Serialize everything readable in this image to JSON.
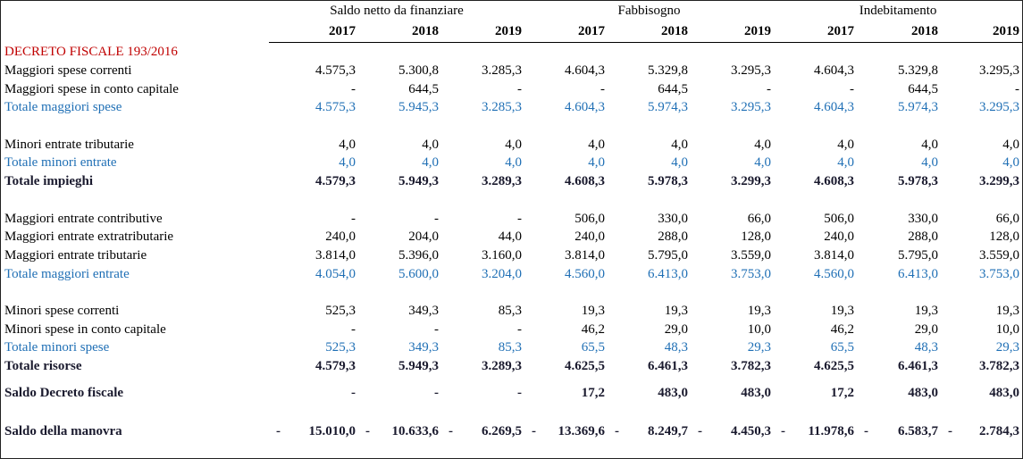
{
  "groups": [
    "Saldo netto da finanziare",
    "Fabbisogno",
    "Indebitamento"
  ],
  "years": [
    "2017",
    "2018",
    "2019",
    "2017",
    "2018",
    "2019",
    "2017",
    "2018",
    "2019"
  ],
  "section_title": "DECRETO FISCALE 193/2016",
  "rows": [
    {
      "label": "Maggiori spese correnti",
      "v": [
        "4.575,3",
        "5.300,8",
        "3.285,3",
        "4.604,3",
        "5.329,8",
        "3.295,3",
        "4.604,3",
        "5.329,8",
        "3.295,3"
      ]
    },
    {
      "label": "Maggiori spese in conto capitale",
      "v": [
        "-",
        "644,5",
        "-",
        "-",
        "644,5",
        "-",
        "-",
        "644,5",
        "-"
      ]
    },
    {
      "label": "Totale maggiori spese",
      "v": [
        "4.575,3",
        "5.945,3",
        "3.285,3",
        "4.604,3",
        "5.974,3",
        "3.295,3",
        "4.604,3",
        "5.974,3",
        "3.295,3"
      ]
    },
    {
      "label": "Minori entrate tributarie",
      "v": [
        "4,0",
        "4,0",
        "4,0",
        "4,0",
        "4,0",
        "4,0",
        "4,0",
        "4,0",
        "4,0"
      ]
    },
    {
      "label": "Totale minori entrate",
      "v": [
        "4,0",
        "4,0",
        "4,0",
        "4,0",
        "4,0",
        "4,0",
        "4,0",
        "4,0",
        "4,0"
      ]
    },
    {
      "label": "Totale impieghi",
      "v": [
        "4.579,3",
        "5.949,3",
        "3.289,3",
        "4.608,3",
        "5.978,3",
        "3.299,3",
        "4.608,3",
        "5.978,3",
        "3.299,3"
      ]
    },
    {
      "label": "Maggiori entrate contributive",
      "v": [
        "-",
        "-",
        "-",
        "506,0",
        "330,0",
        "66,0",
        "506,0",
        "330,0",
        "66,0"
      ]
    },
    {
      "label": "Maggiori entrate extratributarie",
      "v": [
        "240,0",
        "204,0",
        "44,0",
        "240,0",
        "288,0",
        "128,0",
        "240,0",
        "288,0",
        "128,0"
      ]
    },
    {
      "label": "Maggiori entrate tributarie",
      "v": [
        "3.814,0",
        "5.396,0",
        "3.160,0",
        "3.814,0",
        "5.795,0",
        "3.559,0",
        "3.814,0",
        "5.795,0",
        "3.559,0"
      ]
    },
    {
      "label": "Totale maggiori entrate",
      "v": [
        "4.054,0",
        "5.600,0",
        "3.204,0",
        "4.560,0",
        "6.413,0",
        "3.753,0",
        "4.560,0",
        "6.413,0",
        "3.753,0"
      ]
    },
    {
      "label": "Minori spese correnti",
      "v": [
        "525,3",
        "349,3",
        "85,3",
        "19,3",
        "19,3",
        "19,3",
        "19,3",
        "19,3",
        "19,3"
      ]
    },
    {
      "label": "Minori spese in conto capitale",
      "v": [
        "-",
        "-",
        "-",
        "46,2",
        "29,0",
        "10,0",
        "46,2",
        "29,0",
        "10,0"
      ]
    },
    {
      "label": "Totale minori spese",
      "v": [
        "525,3",
        "349,3",
        "85,3",
        "65,5",
        "48,3",
        "29,3",
        "65,5",
        "48,3",
        "29,3"
      ]
    },
    {
      "label": "Totale risorse",
      "v": [
        "4.579,3",
        "5.949,3",
        "3.289,3",
        "4.625,5",
        "6.461,3",
        "3.782,3",
        "4.625,5",
        "6.461,3",
        "3.782,3"
      ]
    },
    {
      "label": "Saldo Decreto fiscale",
      "v": [
        "-",
        "-",
        "-",
        "17,2",
        "483,0",
        "483,0",
        "17,2",
        "483,0",
        "483,0"
      ]
    },
    {
      "label": "Saldo della manovra",
      "v": [
        "15.010,0",
        "10.633,6",
        "6.269,5",
        "13.369,6",
        "8.249,7",
        "4.450,3",
        "11.978,6",
        "6.583,7",
        "2.784,3"
      ],
      "minus": "-"
    }
  ]
}
